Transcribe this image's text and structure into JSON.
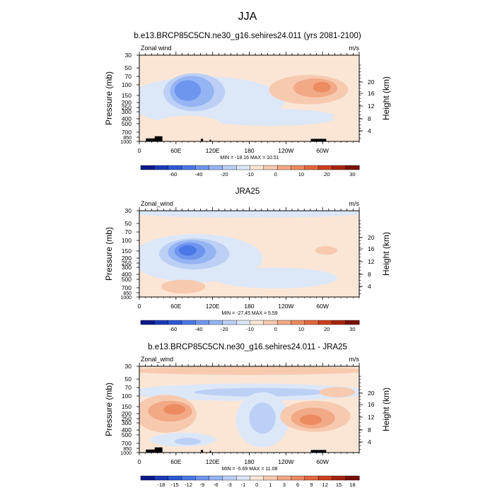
{
  "figure": {
    "title": "JJA"
  },
  "chart_data": [
    {
      "type": "heatmap",
      "title": "b.e13.BRCP85C5CN.ne30_g16.sehires24.011 (yrs 2081-2100)",
      "left_label": "Zonal wind",
      "right_label": "m/s",
      "ylabel": "Pressure (mb)",
      "ylabel_right": "Height (km)",
      "x_tick_labels": [
        "0",
        "60E",
        "120E",
        "180",
        "120W",
        "60W"
      ],
      "y_tick_labels": [
        "30",
        "50",
        "70",
        "100",
        "150",
        "200",
        "250",
        "300",
        "400",
        "500",
        "700",
        "850",
        "1000"
      ],
      "height_tick_labels": [
        "4",
        "8",
        "12",
        "16",
        "20"
      ],
      "stats": "MIN = -18.16  MAX =  10.51",
      "colorbar_labels": [
        "-60",
        "-40",
        "-20",
        "-10",
        "0",
        "10",
        "20",
        "30"
      ],
      "colorbar_colors": [
        "#0a1a8c",
        "#1a3ab8",
        "#2b58d6",
        "#4a78e6",
        "#6f96ee",
        "#95b4f3",
        "#bcd0f6",
        "#dce7f8",
        "#fbe6d6",
        "#f7cab0",
        "#f2a985",
        "#ec8a60",
        "#e4673d",
        "#cc3f1c",
        "#a8240e",
        "#7a1005"
      ],
      "lon_range": [
        0,
        360
      ],
      "pressure_range_mb": [
        30,
        1000
      ]
    },
    {
      "type": "heatmap",
      "title": "JRA25",
      "left_label": "Zonal_wind",
      "right_label": "m/s",
      "ylabel": "Pressure (mb)",
      "ylabel_right": "Height (km)",
      "x_tick_labels": [
        "0",
        "60E",
        "120E",
        "180",
        "120W",
        "60W"
      ],
      "y_tick_labels": [
        "30",
        "50",
        "70",
        "100",
        "150",
        "200",
        "250",
        "300",
        "400",
        "500",
        "700",
        "850",
        "1000"
      ],
      "height_tick_labels": [
        "4",
        "8",
        "12",
        "16",
        "20"
      ],
      "stats": "MIN = -27.45  MAX =   5.59",
      "colorbar_labels": [
        "-60",
        "-40",
        "-20",
        "-10",
        "0",
        "10",
        "20",
        "30"
      ],
      "colorbar_colors": [
        "#0a1a8c",
        "#1a3ab8",
        "#2b58d6",
        "#4a78e6",
        "#6f96ee",
        "#95b4f3",
        "#bcd0f6",
        "#dce7f8",
        "#fbe6d6",
        "#f7cab0",
        "#f2a985",
        "#ec8a60",
        "#e4673d",
        "#cc3f1c",
        "#a8240e",
        "#7a1005"
      ],
      "lon_range": [
        0,
        360
      ],
      "pressure_range_mb": [
        30,
        1000
      ]
    },
    {
      "type": "heatmap",
      "title": "b.e13.BRCP85C5CN.ne30_g16.sehires24.011 - JRA25",
      "left_label": "Zonal_wind",
      "right_label": "m/s",
      "ylabel": "Pressure (mb)",
      "ylabel_right": "Height (km)",
      "x_tick_labels": [
        "0",
        "60E",
        "120E",
        "180",
        "120W",
        "60W"
      ],
      "y_tick_labels": [
        "30",
        "50",
        "70",
        "100",
        "150",
        "200",
        "250",
        "300",
        "400",
        "500",
        "700",
        "850",
        "1000"
      ],
      "height_tick_labels": [
        "4",
        "8",
        "12",
        "16",
        "20"
      ],
      "stats": "MIN =  -5.69  MAX =  11.08",
      "colorbar_labels": [
        "-18",
        "-15",
        "-12",
        "-9",
        "-6",
        "-3",
        "-1",
        "0",
        "1",
        "3",
        "6",
        "9",
        "12",
        "15",
        "18"
      ],
      "colorbar_colors": [
        "#0a1a8c",
        "#1a3ab8",
        "#2b58d6",
        "#4a78e6",
        "#6f96ee",
        "#95b4f3",
        "#bcd0f6",
        "#dce7f8",
        "#fbe6d6",
        "#f7cab0",
        "#f2a985",
        "#ec8a60",
        "#e4673d",
        "#cc3f1c",
        "#a8240e",
        "#7a1005"
      ],
      "lon_range": [
        0,
        360
      ],
      "pressure_range_mb": [
        30,
        1000
      ]
    }
  ]
}
